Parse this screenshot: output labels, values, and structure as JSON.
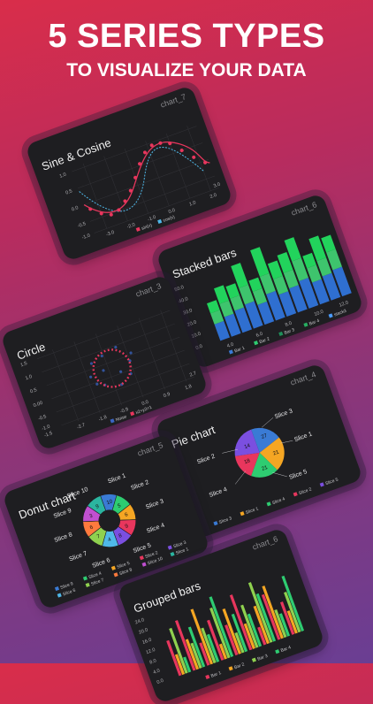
{
  "headline": "5 SERIES TYPES",
  "subheadline": "TO VISUALIZE YOUR DATA",
  "cards": {
    "sine": {
      "tag": "chart_7",
      "title": "Sine & Cosine",
      "xticks": [
        "-3.0",
        "-2.0",
        "-1.0",
        "0.0",
        "1.0",
        "2.0",
        "3.0"
      ],
      "yticks": [
        "1.0",
        "0.5",
        "0.0",
        "-0.5",
        "-1.0"
      ],
      "legend": [
        "sin(x)",
        "cos(x)"
      ],
      "colors": [
        "#e8365d",
        "#4fb8e8"
      ]
    },
    "stacked": {
      "tag": "chart_6",
      "title": "Stacked bars",
      "yticks": [
        "50.0",
        "40.0",
        "30.0",
        "20.0",
        "10.0",
        "0.0"
      ],
      "xticks": [
        "4.0",
        "6.0",
        "8.0",
        "10.0",
        "12.0"
      ],
      "legend": [
        "Bar 1",
        "Bar 2",
        "Bar 3",
        "Bar 4",
        "stack3"
      ],
      "colors": [
        "#3a7bd5",
        "#2ecc71",
        "#1f8f5a",
        "#27ae60",
        "#4b9cff"
      ],
      "chart_data": {
        "type": "bar",
        "series": [
          {
            "name": "Bar 1",
            "values": [
              15,
              18,
              20,
              22,
              18,
              24,
              20,
              22,
              25,
              20,
              22,
              24
            ]
          },
          {
            "name": "Bar 2",
            "values": [
              10,
              12,
              11,
              15,
              12,
              16,
              14,
              14,
              18,
              13,
              14,
              16
            ]
          },
          {
            "name": "Bar 3",
            "values": [
              9,
              14,
              11,
              20,
              10,
              24,
              14,
              16,
              19,
              11,
              20,
              13
            ]
          }
        ]
      }
    },
    "circle": {
      "tag": "chart_3",
      "title": "Circle",
      "xticks": [
        "-2.7",
        "-1.8",
        "-0.9",
        "0.0",
        "0.9",
        "1.8",
        "2.7"
      ],
      "yticks": [
        "1.5",
        "1.0",
        "0.5",
        "0.00",
        "-0.5",
        "-1.0",
        "-1.5"
      ],
      "legend": [
        "Noise",
        "x2+y2=1"
      ],
      "colors": [
        "#3a66c4",
        "#e8365d"
      ]
    },
    "pie": {
      "tag": "chart_4",
      "title": "Pie chart",
      "slices": [
        "Slice 1",
        "Slice 2",
        "Slice 3",
        "Slice 4",
        "Slice 5"
      ],
      "values": [
        "27",
        "21",
        "21",
        "18",
        "14"
      ],
      "colors": [
        "#3a7bd5",
        "#f5a623",
        "#2ecc71",
        "#e8365d",
        "#7b4fe0"
      ],
      "legend": [
        "Slice 3",
        "Slice 1",
        "Slice 4",
        "Slice 2",
        "Slice 5"
      ],
      "chart_data": {
        "type": "pie",
        "categories": [
          "Slice 1",
          "Slice 2",
          "Slice 3",
          "Slice 4",
          "Slice 5"
        ],
        "values": [
          27,
          18,
          21,
          21,
          14
        ]
      }
    },
    "donut": {
      "tag": "chart_5",
      "title": "Donut chart",
      "slices": [
        "Slice 1",
        "Slice 2",
        "Slice 3",
        "Slice 4",
        "Slice 5",
        "Slice 6",
        "Slice 7",
        "Slice 8",
        "Slice 9",
        "Slice 10"
      ],
      "values": [
        "10",
        "5",
        "6",
        "9",
        "8",
        "4",
        "7",
        "6",
        "3",
        "9"
      ],
      "legend": [
        "Slice 9",
        "Slice 4",
        "Slice 5",
        "Slice 2",
        "Slice 3",
        "Slice 6",
        "Slice 7",
        "Slice 8",
        "Slice 10",
        "Slice 1"
      ]
    },
    "grouped": {
      "tag": "chart_6",
      "title": "Grouped bars",
      "yticks": [
        "24.0",
        "20.0",
        "16.0",
        "12.0",
        "8.0",
        "4.0",
        "0.0"
      ],
      "legend": [
        "Bar 1",
        "Bar 2",
        "Bar 3",
        "Bar 4"
      ],
      "colors": [
        "#e8365d",
        "#f5a623",
        "#8fd14f",
        "#2ecc71"
      ]
    }
  }
}
